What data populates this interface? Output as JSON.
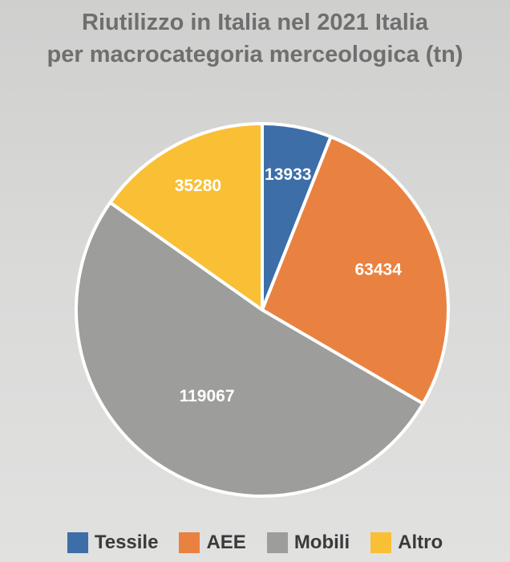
{
  "chart_data": {
    "type": "pie",
    "title": "Riutilizzo in Italia nel 2021 Italia",
    "subtitle": "per macrocategoria merceologica (tn)",
    "categories": [
      "Tessile",
      "AEE",
      "Mobili",
      "Altro"
    ],
    "values": [
      13933,
      63434,
      119067,
      35280
    ],
    "data_labels": [
      "13933",
      "63434",
      "119067",
      "35280"
    ],
    "colors": [
      "#3d6ea8",
      "#e98240",
      "#9d9d9b",
      "#f9bf35"
    ],
    "legend": "bottom",
    "start": "12 o'clock",
    "direction": "clockwise"
  }
}
